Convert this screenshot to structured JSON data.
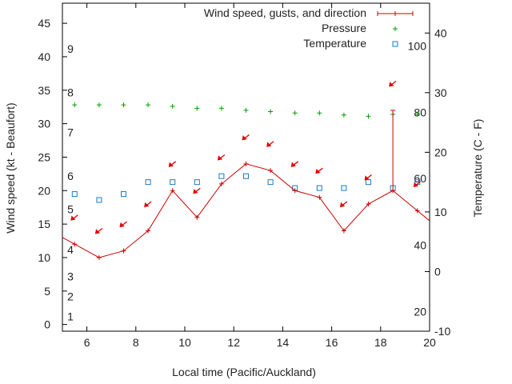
{
  "chart_data": {
    "type": "line",
    "title": "",
    "xlabel": "Local time (Pacific/Auckland)",
    "ylabel_left": "Wind speed (kt - Beaufort)",
    "ylabel_right": "Temperature (C - F)",
    "xlim": [
      5,
      20
    ],
    "ylim_left": [
      -1,
      48
    ],
    "ylim_right": [
      -10,
      45
    ],
    "x_ticks": [
      "6",
      "8",
      "10",
      "12",
      "14",
      "16",
      "18",
      "20"
    ],
    "y_ticks_left": [
      "0",
      "5",
      "10",
      "15",
      "20",
      "25",
      "30",
      "35",
      "40",
      "45"
    ],
    "y_ticks_right": [
      "-10",
      "0",
      "10",
      "20",
      "30",
      "40"
    ],
    "beaufort_labels": [
      {
        "text": "1",
        "kt": 1.2
      },
      {
        "text": "2",
        "kt": 4.2
      },
      {
        "text": "3",
        "kt": 7.2
      },
      {
        "text": "4",
        "kt": 11.2
      },
      {
        "text": "5",
        "kt": 17.2
      },
      {
        "text": "6",
        "kt": 22.2
      },
      {
        "text": "7",
        "kt": 28.7
      },
      {
        "text": "8",
        "kt": 34.7
      },
      {
        "text": "9",
        "kt": 41.2
      }
    ],
    "fahrenheit_labels": [
      {
        "text": "20",
        "c": -6.7
      },
      {
        "text": "40",
        "c": 4.4
      },
      {
        "text": "60",
        "c": 15.6
      },
      {
        "text": "80",
        "c": 26.7
      },
      {
        "text": "100",
        "c": 37.8
      }
    ],
    "series": [
      {
        "name": "Wind speed, gusts, and direction",
        "color": "#cc0000",
        "x": [
          5.5,
          6.5,
          7.5,
          8.5,
          9.5,
          10.5,
          11.5,
          12.5,
          13.5,
          14.5,
          15.5,
          16.5,
          17.5,
          18.5,
          19.5
        ],
        "values": [
          12,
          10,
          11,
          14,
          20,
          16,
          21,
          24,
          23,
          20,
          19,
          14,
          18,
          20,
          17
        ],
        "gust": {
          "x": 18.5,
          "from": 20,
          "to": 32
        }
      },
      {
        "name": "Pressure",
        "color": "#00a000",
        "x": [
          5.5,
          6.5,
          7.5,
          8.5,
          9.5,
          10.5,
          11.5,
          12.5,
          13.5,
          14.5,
          15.5,
          16.5,
          17.5,
          18.5,
          19.5
        ],
        "values": [
          32.8,
          32.8,
          32.8,
          32.8,
          32.6,
          32.3,
          32.3,
          32,
          31.8,
          31.6,
          31.6,
          31.3,
          31.1,
          31.4,
          31.4
        ]
      },
      {
        "name": "Temperature",
        "color": "#1a7ac8",
        "x": [
          5.5,
          6.5,
          7.5,
          8.5,
          9.5,
          10.5,
          11.5,
          12.5,
          13.5,
          14.5,
          15.5,
          16.5,
          17.5,
          18.5,
          19.5
        ],
        "values": [
          13,
          12,
          13,
          15,
          15,
          15,
          16,
          16,
          15,
          14,
          14,
          14,
          15,
          14,
          15
        ]
      }
    ],
    "direction_arrows": {
      "x": [
        5.5,
        6.5,
        7.5,
        8.5,
        9.5,
        10.5,
        11.5,
        12.5,
        13.5,
        14.5,
        15.5,
        16.5,
        17.5,
        18.5,
        19.5
      ],
      "kt": [
        16,
        14,
        15,
        18,
        24,
        20,
        25,
        28,
        27,
        24,
        23,
        18,
        22,
        36,
        21
      ]
    },
    "grid": false,
    "legend_position": "top-right"
  }
}
